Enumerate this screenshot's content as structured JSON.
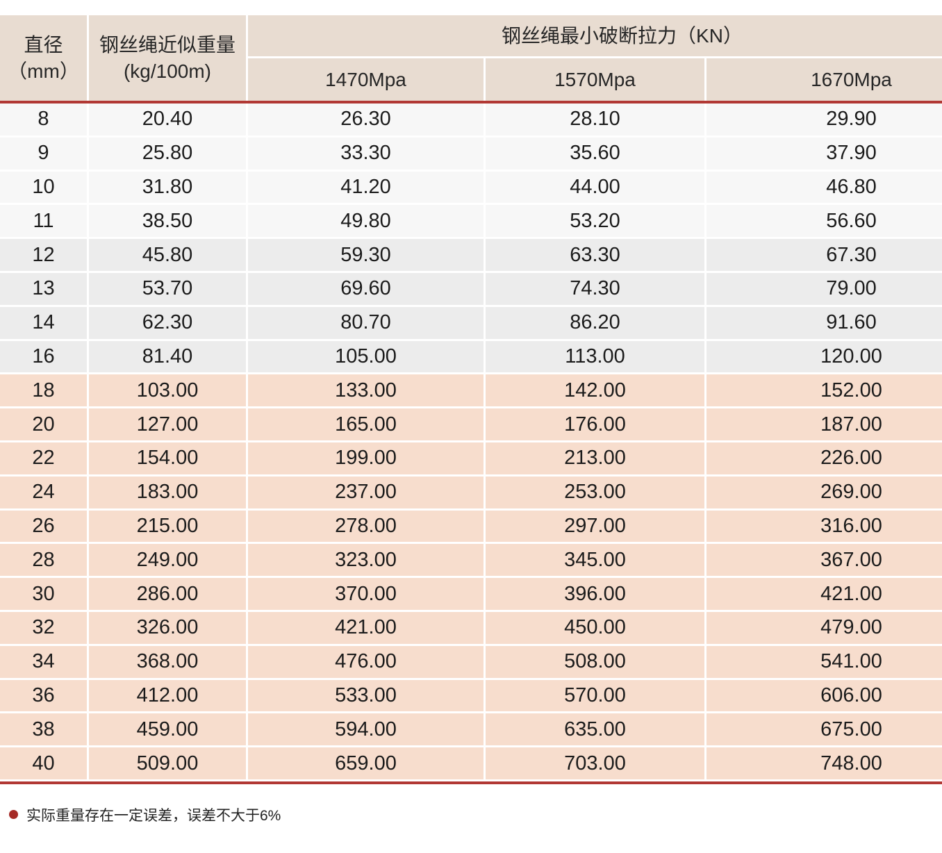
{
  "colors": {
    "header_bg": "#e8dcd1",
    "row_light": "#f7f7f7",
    "row_gray": "#ececec",
    "row_peach": "#f7ddcd",
    "red_line": "#b13834",
    "note_bullet": "#a52a26"
  },
  "table": {
    "header": {
      "diameter_line1": "直径",
      "diameter_line2": "（mm）",
      "weight_line1": "钢丝绳近似重量",
      "weight_line2": "(kg/100m)",
      "breaking_force": "钢丝绳最小破断拉力（KN）",
      "grades": [
        "1470Mpa",
        "1570Mpa",
        "1670Mpa"
      ]
    },
    "rows": [
      {
        "band": "light",
        "d": "8",
        "w": "20.40",
        "f1470": "26.30",
        "f1570": "28.10",
        "f1670": "29.90"
      },
      {
        "band": "light",
        "d": "9",
        "w": "25.80",
        "f1470": "33.30",
        "f1570": "35.60",
        "f1670": "37.90"
      },
      {
        "band": "light",
        "d": "10",
        "w": "31.80",
        "f1470": "41.20",
        "f1570": "44.00",
        "f1670": "46.80"
      },
      {
        "band": "light",
        "d": "11",
        "w": "38.50",
        "f1470": "49.80",
        "f1570": "53.20",
        "f1670": "56.60"
      },
      {
        "band": "gray",
        "d": "12",
        "w": "45.80",
        "f1470": "59.30",
        "f1570": "63.30",
        "f1670": "67.30"
      },
      {
        "band": "gray",
        "d": "13",
        "w": "53.70",
        "f1470": "69.60",
        "f1570": "74.30",
        "f1670": "79.00"
      },
      {
        "band": "gray",
        "d": "14",
        "w": "62.30",
        "f1470": "80.70",
        "f1570": "86.20",
        "f1670": "91.60"
      },
      {
        "band": "gray",
        "d": "16",
        "w": "81.40",
        "f1470": "105.00",
        "f1570": "113.00",
        "f1670": "120.00"
      },
      {
        "band": "peach",
        "d": "18",
        "w": "103.00",
        "f1470": "133.00",
        "f1570": "142.00",
        "f1670": "152.00"
      },
      {
        "band": "peach",
        "d": "20",
        "w": "127.00",
        "f1470": "165.00",
        "f1570": "176.00",
        "f1670": "187.00"
      },
      {
        "band": "peach",
        "d": "22",
        "w": "154.00",
        "f1470": "199.00",
        "f1570": "213.00",
        "f1670": "226.00"
      },
      {
        "band": "peach",
        "d": "24",
        "w": "183.00",
        "f1470": "237.00",
        "f1570": "253.00",
        "f1670": "269.00"
      },
      {
        "band": "peach",
        "d": "26",
        "w": "215.00",
        "f1470": "278.00",
        "f1570": "297.00",
        "f1670": "316.00"
      },
      {
        "band": "peach",
        "d": "28",
        "w": "249.00",
        "f1470": "323.00",
        "f1570": "345.00",
        "f1670": "367.00"
      },
      {
        "band": "peach",
        "d": "30",
        "w": "286.00",
        "f1470": "370.00",
        "f1570": "396.00",
        "f1670": "421.00"
      },
      {
        "band": "peach",
        "d": "32",
        "w": "326.00",
        "f1470": "421.00",
        "f1570": "450.00",
        "f1670": "479.00"
      },
      {
        "band": "peach",
        "d": "34",
        "w": "368.00",
        "f1470": "476.00",
        "f1570": "508.00",
        "f1670": "541.00"
      },
      {
        "band": "peach",
        "d": "36",
        "w": "412.00",
        "f1470": "533.00",
        "f1570": "570.00",
        "f1670": "606.00"
      },
      {
        "band": "peach",
        "d": "38",
        "w": "459.00",
        "f1470": "594.00",
        "f1570": "635.00",
        "f1670": "675.00"
      },
      {
        "band": "peach",
        "d": "40",
        "w": "509.00",
        "f1470": "659.00",
        "f1570": "703.00",
        "f1670": "748.00"
      }
    ]
  },
  "note": {
    "text": "实际重量存在一定误差，误差不大于6%"
  }
}
